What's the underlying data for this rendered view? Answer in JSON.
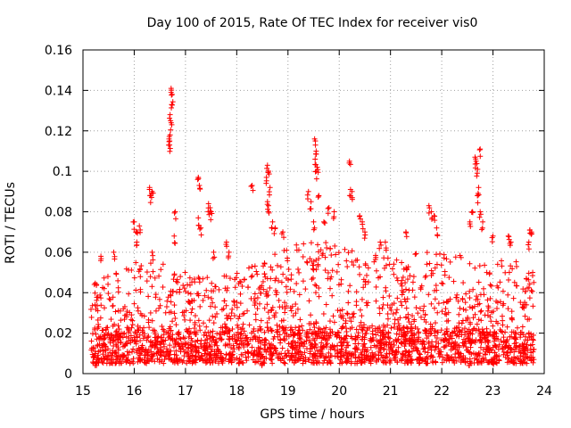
{
  "chart_data": {
    "type": "scatter",
    "title": "Day 100 of 2015, Rate Of TEC Index for receiver vis0",
    "xlabel": "GPS time / hours",
    "ylabel": "ROTI / TECUs",
    "xlim": [
      15,
      24
    ],
    "ylim": [
      0,
      0.16
    ],
    "xticks": [
      "15",
      "16",
      "17",
      "18",
      "19",
      "20",
      "21",
      "22",
      "23",
      "24"
    ],
    "yticks": [
      "0",
      "0.02",
      "0.04",
      "0.06",
      "0.08",
      "0.1",
      "0.12",
      "0.14",
      "0.16"
    ],
    "grid": true,
    "marker": "+",
    "color": "#ff0000",
    "data_range": {
      "x": [
        15.15,
        23.8
      ]
    },
    "baseline_envelope": [
      [
        15.2,
        0.012,
        0.045
      ],
      [
        15.6,
        0.01,
        0.05
      ],
      [
        16.0,
        0.012,
        0.055
      ],
      [
        16.5,
        0.012,
        0.055
      ],
      [
        17.0,
        0.01,
        0.05
      ],
      [
        17.5,
        0.01,
        0.048
      ],
      [
        18.0,
        0.01,
        0.05
      ],
      [
        18.5,
        0.012,
        0.055
      ],
      [
        19.0,
        0.012,
        0.065
      ],
      [
        19.5,
        0.012,
        0.065
      ],
      [
        20.0,
        0.012,
        0.065
      ],
      [
        20.5,
        0.012,
        0.06
      ],
      [
        21.0,
        0.012,
        0.058
      ],
      [
        21.5,
        0.012,
        0.06
      ],
      [
        22.0,
        0.012,
        0.06
      ],
      [
        22.5,
        0.012,
        0.058
      ],
      [
        23.0,
        0.01,
        0.058
      ],
      [
        23.5,
        0.01,
        0.055
      ],
      [
        23.8,
        0.01,
        0.05
      ]
    ],
    "notable_points": [
      [
        15.25,
        0.005
      ],
      [
        15.35,
        0.058
      ],
      [
        15.6,
        0.06
      ],
      [
        16.0,
        0.075
      ],
      [
        16.05,
        0.07
      ],
      [
        16.05,
        0.065
      ],
      [
        16.1,
        0.073
      ],
      [
        16.3,
        0.092
      ],
      [
        16.32,
        0.088
      ],
      [
        16.35,
        0.09
      ],
      [
        16.35,
        0.06
      ],
      [
        16.72,
        0.141
      ],
      [
        16.74,
        0.138
      ],
      [
        16.73,
        0.133
      ],
      [
        16.7,
        0.128
      ],
      [
        16.72,
        0.124
      ],
      [
        16.7,
        0.118
      ],
      [
        16.68,
        0.116
      ],
      [
        16.69,
        0.113
      ],
      [
        16.8,
        0.08
      ],
      [
        16.78,
        0.068
      ],
      [
        17.25,
        0.097
      ],
      [
        17.27,
        0.093
      ],
      [
        17.25,
        0.077
      ],
      [
        17.3,
        0.072
      ],
      [
        17.45,
        0.084
      ],
      [
        17.48,
        0.082
      ],
      [
        17.5,
        0.08
      ],
      [
        17.55,
        0.06
      ],
      [
        17.8,
        0.065
      ],
      [
        17.85,
        0.06
      ],
      [
        18.3,
        0.093
      ],
      [
        18.6,
        0.103
      ],
      [
        18.62,
        0.1
      ],
      [
        18.58,
        0.097
      ],
      [
        18.65,
        0.092
      ],
      [
        18.6,
        0.085
      ],
      [
        18.62,
        0.083
      ],
      [
        18.7,
        0.075
      ],
      [
        18.75,
        0.072
      ],
      [
        18.9,
        0.07
      ],
      [
        19.4,
        0.09
      ],
      [
        19.45,
        0.085
      ],
      [
        19.5,
        0.075
      ],
      [
        19.52,
        0.116
      ],
      [
        19.55,
        0.11
      ],
      [
        19.53,
        0.106
      ],
      [
        19.57,
        0.102
      ],
      [
        19.55,
        0.1
      ],
      [
        19.6,
        0.088
      ],
      [
        19.7,
        0.075
      ],
      [
        19.8,
        0.082
      ],
      [
        19.9,
        0.08
      ],
      [
        20.2,
        0.105
      ],
      [
        20.22,
        0.091
      ],
      [
        20.25,
        0.09
      ],
      [
        20.4,
        0.078
      ],
      [
        20.45,
        0.075
      ],
      [
        20.5,
        0.07
      ],
      [
        20.8,
        0.065
      ],
      [
        20.9,
        0.065
      ],
      [
        21.3,
        0.07
      ],
      [
        21.75,
        0.083
      ],
      [
        21.8,
        0.08
      ],
      [
        21.85,
        0.078
      ],
      [
        21.9,
        0.072
      ],
      [
        22.65,
        0.107
      ],
      [
        22.67,
        0.105
      ],
      [
        22.7,
        0.101
      ],
      [
        22.75,
        0.111
      ],
      [
        22.72,
        0.092
      ],
      [
        22.7,
        0.088
      ],
      [
        22.75,
        0.08
      ],
      [
        22.8,
        0.075
      ],
      [
        22.6,
        0.08
      ],
      [
        22.55,
        0.075
      ],
      [
        23.0,
        0.068
      ],
      [
        23.3,
        0.068
      ],
      [
        23.35,
        0.065
      ],
      [
        23.72,
        0.071
      ],
      [
        23.75,
        0.07
      ],
      [
        23.7,
        0.065
      ],
      [
        22.55,
        0.006
      ],
      [
        23.0,
        0.007
      ],
      [
        18.5,
        0.005
      ]
    ]
  }
}
